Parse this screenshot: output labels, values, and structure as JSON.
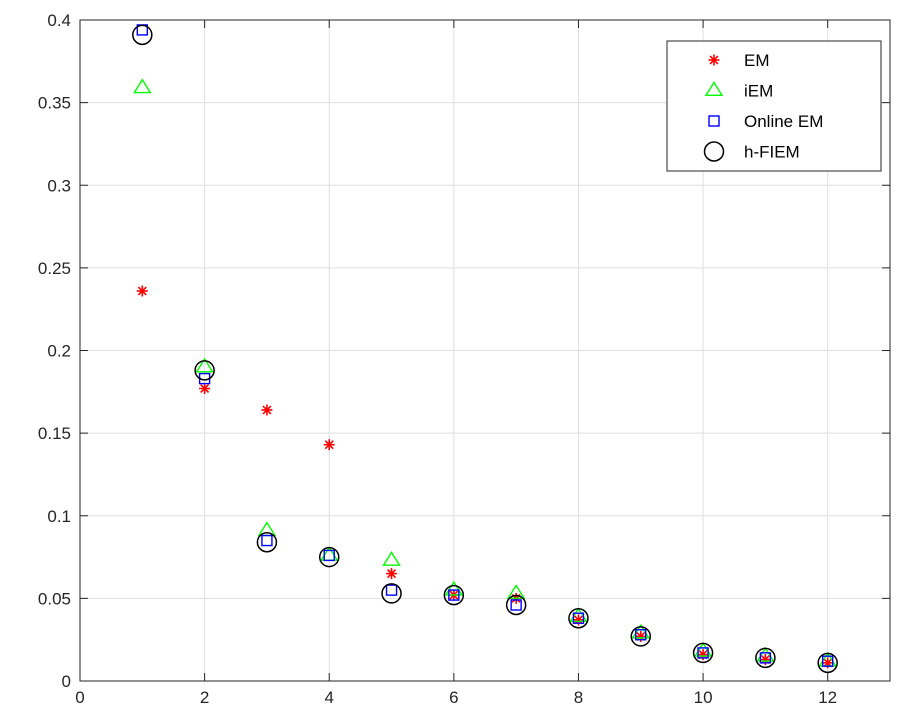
{
  "chart_data": {
    "type": "scatter",
    "title": "",
    "xlabel": "",
    "ylabel": "",
    "xlim": [
      0,
      13
    ],
    "ylim": [
      0,
      0.4
    ],
    "xticks": [
      0,
      2,
      4,
      6,
      8,
      10,
      12
    ],
    "yticks": [
      0,
      0.05,
      0.1,
      0.15,
      0.2,
      0.25,
      0.3,
      0.35,
      0.4
    ],
    "xtick_labels": [
      "0",
      "2",
      "4",
      "6",
      "8",
      "10",
      "12"
    ],
    "ytick_labels": [
      "0",
      "0.05",
      "0.1",
      "0.15",
      "0.2",
      "0.25",
      "0.3",
      "0.35",
      "0.4"
    ],
    "grid": true,
    "legend_position": "top-right",
    "x": [
      1,
      2,
      3,
      4,
      5,
      6,
      7,
      8,
      9,
      10,
      11,
      12
    ],
    "series": [
      {
        "name": "EM",
        "marker": "asterisk",
        "color": "#ff0000",
        "values": [
          0.236,
          0.177,
          0.164,
          0.143,
          0.065,
          0.052,
          0.05,
          0.037,
          0.027,
          0.016,
          0.013,
          0.011
        ]
      },
      {
        "name": "iEM",
        "marker": "triangle",
        "color": "#00ff00",
        "values": [
          0.359,
          0.19,
          0.091,
          0.076,
          0.073,
          0.055,
          0.053,
          0.039,
          0.029,
          0.018,
          0.015,
          0.012
        ]
      },
      {
        "name": "Online EM",
        "marker": "square",
        "color": "#0000ff",
        "values": [
          0.394,
          0.183,
          0.085,
          0.076,
          0.055,
          0.052,
          0.046,
          0.038,
          0.028,
          0.017,
          0.014,
          0.012
        ]
      },
      {
        "name": "h-FIEM",
        "marker": "circle",
        "color": "#000000",
        "values": [
          0.391,
          0.188,
          0.084,
          0.075,
          0.053,
          0.052,
          0.046,
          0.038,
          0.027,
          0.017,
          0.014,
          0.011
        ]
      }
    ]
  }
}
